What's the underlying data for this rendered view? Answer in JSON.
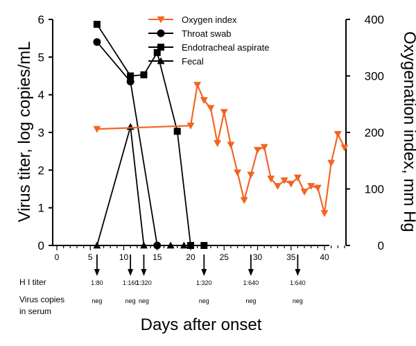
{
  "chart_data": {
    "type": "line",
    "xlabel": "Days after onset",
    "ylabel_left": "Virus titer, log copies/mL",
    "ylabel_right": "Oxygenation index, mm Hg",
    "xlim": [
      0,
      43
    ],
    "ylim_left": [
      0,
      6
    ],
    "ylim_right": [
      0,
      400
    ],
    "x_ticks": [
      0,
      5,
      10,
      15,
      20,
      25,
      30,
      35,
      40
    ],
    "y_ticks_left": [
      0,
      1,
      2,
      3,
      4,
      5,
      6
    ],
    "y_ticks_right": [
      0,
      100,
      200,
      300,
      400
    ],
    "legend_position": "top-center",
    "grid": false,
    "series": [
      {
        "name": "Oxygen index",
        "axis": "right",
        "color": "#f26522",
        "marker": "triangle-down",
        "x": [
          6,
          20,
          21,
          22,
          23,
          24,
          25,
          26,
          27,
          28,
          29,
          30,
          31,
          32,
          33,
          34,
          35,
          36,
          37,
          38,
          39,
          40,
          41,
          42,
          43
        ],
        "y": [
          206,
          212,
          284,
          257,
          243,
          181,
          236,
          178,
          129,
          80,
          125,
          169,
          174,
          118,
          105,
          115,
          109,
          120,
          95,
          105,
          102,
          57,
          146,
          197,
          173
        ]
      },
      {
        "name": "Throat swab",
        "axis": "left",
        "color": "#000000",
        "marker": "circle",
        "x": [
          6,
          11,
          15
        ],
        "y": [
          5.4,
          4.35,
          0
        ]
      },
      {
        "name": "Endotracheal aspirate",
        "axis": "left",
        "color": "#000000",
        "marker": "square",
        "x": [
          6,
          11,
          13,
          15,
          18,
          20,
          22
        ],
        "y": [
          5.87,
          4.5,
          4.53,
          5.12,
          3.03,
          0,
          0
        ]
      },
      {
        "name": "Fecal",
        "axis": "left",
        "color": "#000000",
        "marker": "triangle-up",
        "x": [
          6,
          11,
          13,
          17,
          19
        ],
        "y": [
          0,
          3.15,
          0,
          0,
          0
        ]
      }
    ],
    "hi_titer": {
      "label": "H I titer",
      "values": [
        {
          "day": 6,
          "value": "1:80"
        },
        {
          "day": 11,
          "value": "1:160"
        },
        {
          "day": 13,
          "value": "1:320"
        },
        {
          "day": 22,
          "value": "1:320"
        },
        {
          "day": 29,
          "value": "1:640"
        },
        {
          "day": 36,
          "value": "1:640"
        }
      ]
    },
    "serum_copies": {
      "label_line1": "Virus copies",
      "label_line2": "in serum",
      "values": [
        {
          "day": 6,
          "value": "neg"
        },
        {
          "day": 11,
          "value": "neg"
        },
        {
          "day": 13,
          "value": "neg"
        },
        {
          "day": 22,
          "value": "neg"
        },
        {
          "day": 29,
          "value": "neg"
        },
        {
          "day": 36,
          "value": "neg"
        }
      ]
    }
  }
}
